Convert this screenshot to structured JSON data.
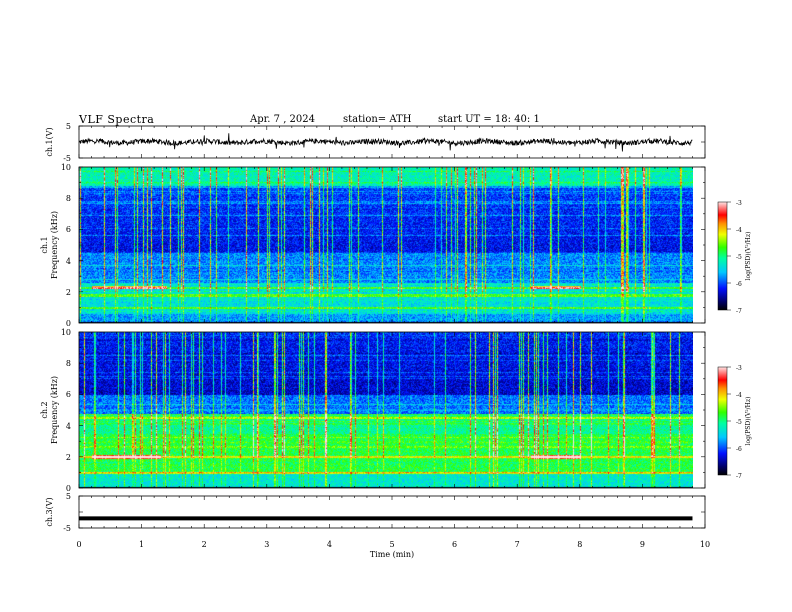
{
  "header": {
    "title": "VLF Spectra",
    "date": "Apr. 7 , 2024",
    "station": "station= ATH",
    "start_ut": "start UT = 18: 40: 1"
  },
  "chart_data": [
    {
      "type": "line",
      "name": "ch1-waveform",
      "ylabel": "ch.1(V)",
      "yticks": [
        "5",
        "-5"
      ],
      "ylim": [
        -5,
        5
      ],
      "xlim": [
        0,
        10
      ],
      "baseline_approx": 0,
      "data_ends_at_x": 9.8
    },
    {
      "type": "heatmap",
      "name": "ch1-spectrogram",
      "ylabel_line1": "ch.1",
      "ylabel_line2": "Frequency (kHz)",
      "yticks": [
        "0",
        "2",
        "4",
        "6",
        "8",
        "10"
      ],
      "ylim": [
        0,
        10
      ],
      "xlim": [
        0,
        10
      ],
      "colorbar": {
        "label": "log(PSD)(V²/Hz)",
        "ticks": [
          "-3",
          "-4",
          "-5",
          "-6",
          "-7"
        ],
        "range": [
          -7,
          -3
        ]
      },
      "notable_bands_khz": [
        2.3,
        1.8,
        1.0
      ],
      "intense_band_segments_min": [
        [
          0.2,
          1.4
        ],
        [
          7.2,
          8.0
        ]
      ]
    },
    {
      "type": "heatmap",
      "name": "ch2-spectrogram",
      "ylabel_line1": "ch.2",
      "ylabel_line2": "Frequency (kHz)",
      "yticks": [
        "0",
        "2",
        "4",
        "6",
        "8",
        "10"
      ],
      "ylim": [
        0,
        10
      ],
      "xlim": [
        0,
        10
      ],
      "colorbar": {
        "label": "log(PSD)(V²/Hz)",
        "ticks": [
          "-3",
          "-4",
          "-5",
          "-6",
          "-7"
        ],
        "range": [
          -7,
          -3
        ]
      },
      "notable_bands_khz": [
        4.5,
        2.0,
        1.0
      ],
      "intense_band_segments_min": [
        [
          0.2,
          1.3
        ],
        [
          7.2,
          8.0
        ]
      ]
    },
    {
      "type": "line",
      "name": "ch3-waveform",
      "ylabel": "ch.3(V)",
      "yticks": [
        "5",
        "-5"
      ],
      "ylim": [
        -5,
        5
      ],
      "xlim": [
        0,
        10
      ],
      "constant_value_approx": -2,
      "data_ends_at_x": 9.8,
      "xlabel": "Time (min)",
      "xticks": [
        "0",
        "1",
        "2",
        "3",
        "4",
        "5",
        "6",
        "7",
        "8",
        "9",
        "10"
      ]
    }
  ]
}
